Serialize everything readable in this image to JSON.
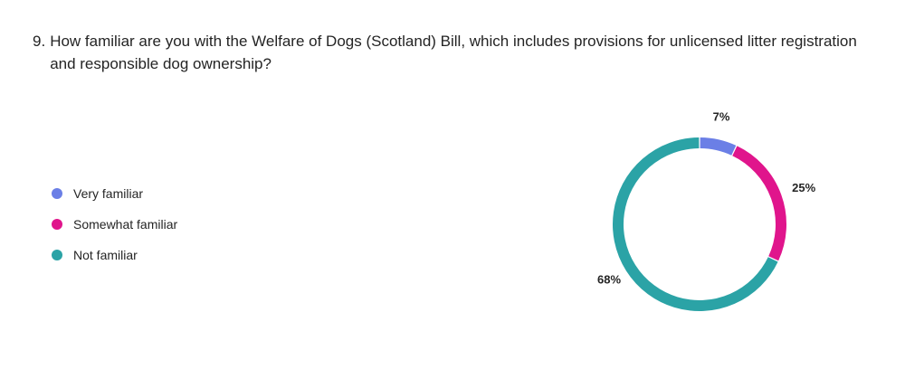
{
  "question": {
    "number": "9.",
    "text": "How familiar are you with the Welfare of Dogs (Scotland) Bill, which includes provisions for unlicensed litter registration and responsible dog ownership?"
  },
  "chart_data": {
    "type": "pie",
    "variant": "donut",
    "title": "",
    "categories": [
      "Very familiar",
      "Somewhat familiar",
      "Not familiar"
    ],
    "values": [
      7,
      25,
      68
    ],
    "labels": [
      "7%",
      "25%",
      "68%"
    ],
    "colors": [
      "#6B7FE6",
      "#E0158C",
      "#2BA3A6"
    ],
    "legend_position": "left"
  }
}
